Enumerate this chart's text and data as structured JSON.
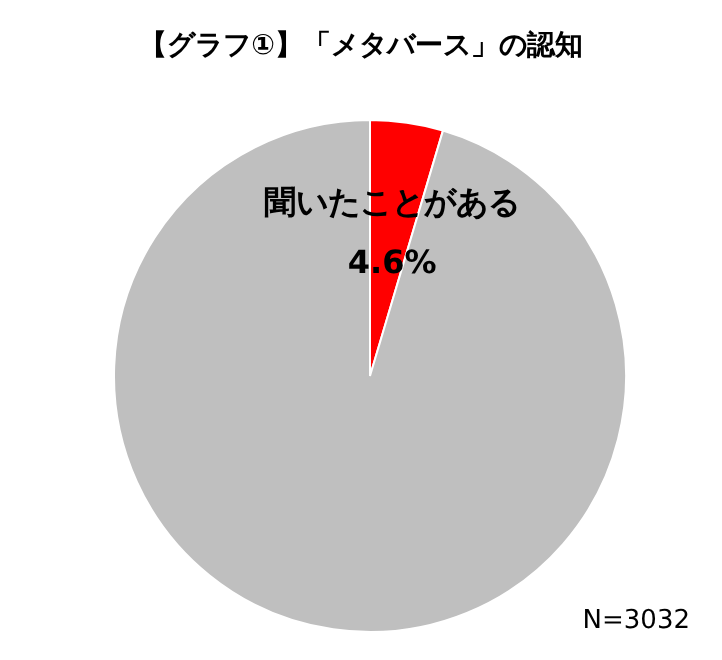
{
  "chart_data": {
    "type": "pie",
    "title": "【グラフ①】「メタバース」の認知",
    "categories": [
      "聞いたことがある",
      null
    ],
    "values": [
      4.6,
      95.4
    ],
    "colors": [
      "#ff0000",
      "#bfbfbf"
    ],
    "value_labels": [
      "4.6%",
      null
    ],
    "annotations": [
      "N=3032"
    ],
    "legend": false
  }
}
